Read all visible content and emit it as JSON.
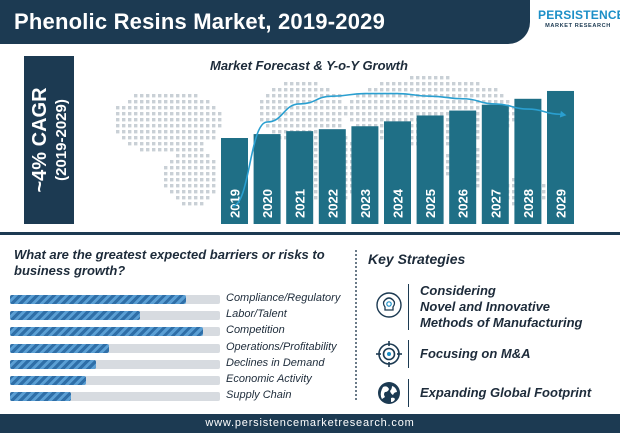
{
  "header": {
    "title": "Phenolic Resins Market, 2019-2029"
  },
  "logo": {
    "main": "PERSISTENCE",
    "sub": "MARKET RESEARCH"
  },
  "cagr": {
    "line1": "~4% CAGR",
    "line2": "(2019-2029)"
  },
  "colors": {
    "navy": "#1c3a52",
    "teal": "#1f6f86",
    "line": "#2a9fd0",
    "accent": "#1c8fc7"
  },
  "chart_data": {
    "type": "bar",
    "title": "Market Forecast & Y-o-Y Growth",
    "categories": [
      "2019",
      "2020",
      "2021",
      "2022",
      "2023",
      "2024",
      "2025",
      "2026",
      "2027",
      "2028",
      "2029"
    ],
    "series": [
      {
        "values": [
          100,
          104,
          107,
          109,
          112,
          117,
          123,
          128,
          134,
          140,
          148
        ]
      },
      {
        "values": [
          0,
          3.6,
          4.3,
          4.6,
          4.7,
          4.7,
          4.6,
          4.5,
          4.3,
          4.1,
          3.9
        ]
      }
    ],
    "ylim": [
      0,
      160
    ],
    "grid": false,
    "legend": "none"
  },
  "risks": {
    "title": "What are the greatest expected barriers or risks to business growth?",
    "items": [
      {
        "label": "Compliance/Regulatory",
        "level": 0.84
      },
      {
        "label": "Labor/Talent",
        "level": 0.62
      },
      {
        "label": "Competition",
        "level": 0.92
      },
      {
        "label": "Operations/Profitability",
        "level": 0.47
      },
      {
        "label": "Declines in Demand",
        "level": 0.41
      },
      {
        "label": "Economic Activity",
        "level": 0.36
      },
      {
        "label": "Supply Chain",
        "level": 0.29
      }
    ]
  },
  "strategies": {
    "title": "Key Strategies",
    "items": [
      {
        "icon": "brain-gear-icon",
        "lines": [
          "Considering",
          "Novel and Innovative",
          "Methods of Manufacturing"
        ]
      },
      {
        "icon": "target-icon",
        "lines": [
          "Focusing on M&A"
        ]
      },
      {
        "icon": "globe-icon",
        "lines": [
          "Expanding Global Footprint"
        ]
      }
    ]
  },
  "footer": {
    "url": "www.persistencemarketresearch.com"
  }
}
